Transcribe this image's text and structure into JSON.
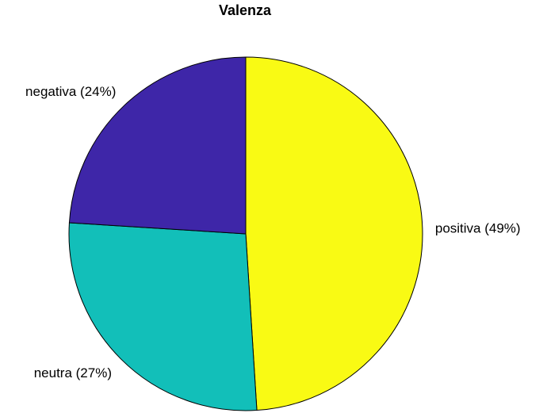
{
  "chart_data": {
    "type": "pie",
    "title": "Valenza",
    "slices": [
      {
        "label": "positiva (49%)",
        "value": 49,
        "color": "#f9fa14"
      },
      {
        "label": "neutra (27%)",
        "value": 27,
        "color": "#12bfb9"
      },
      {
        "label": "negativa (24%)",
        "value": 24,
        "color": "#3e26a8"
      }
    ],
    "start_direction": "top",
    "direction": "clockwise",
    "legend": "none",
    "edge_color": "#000000"
  }
}
